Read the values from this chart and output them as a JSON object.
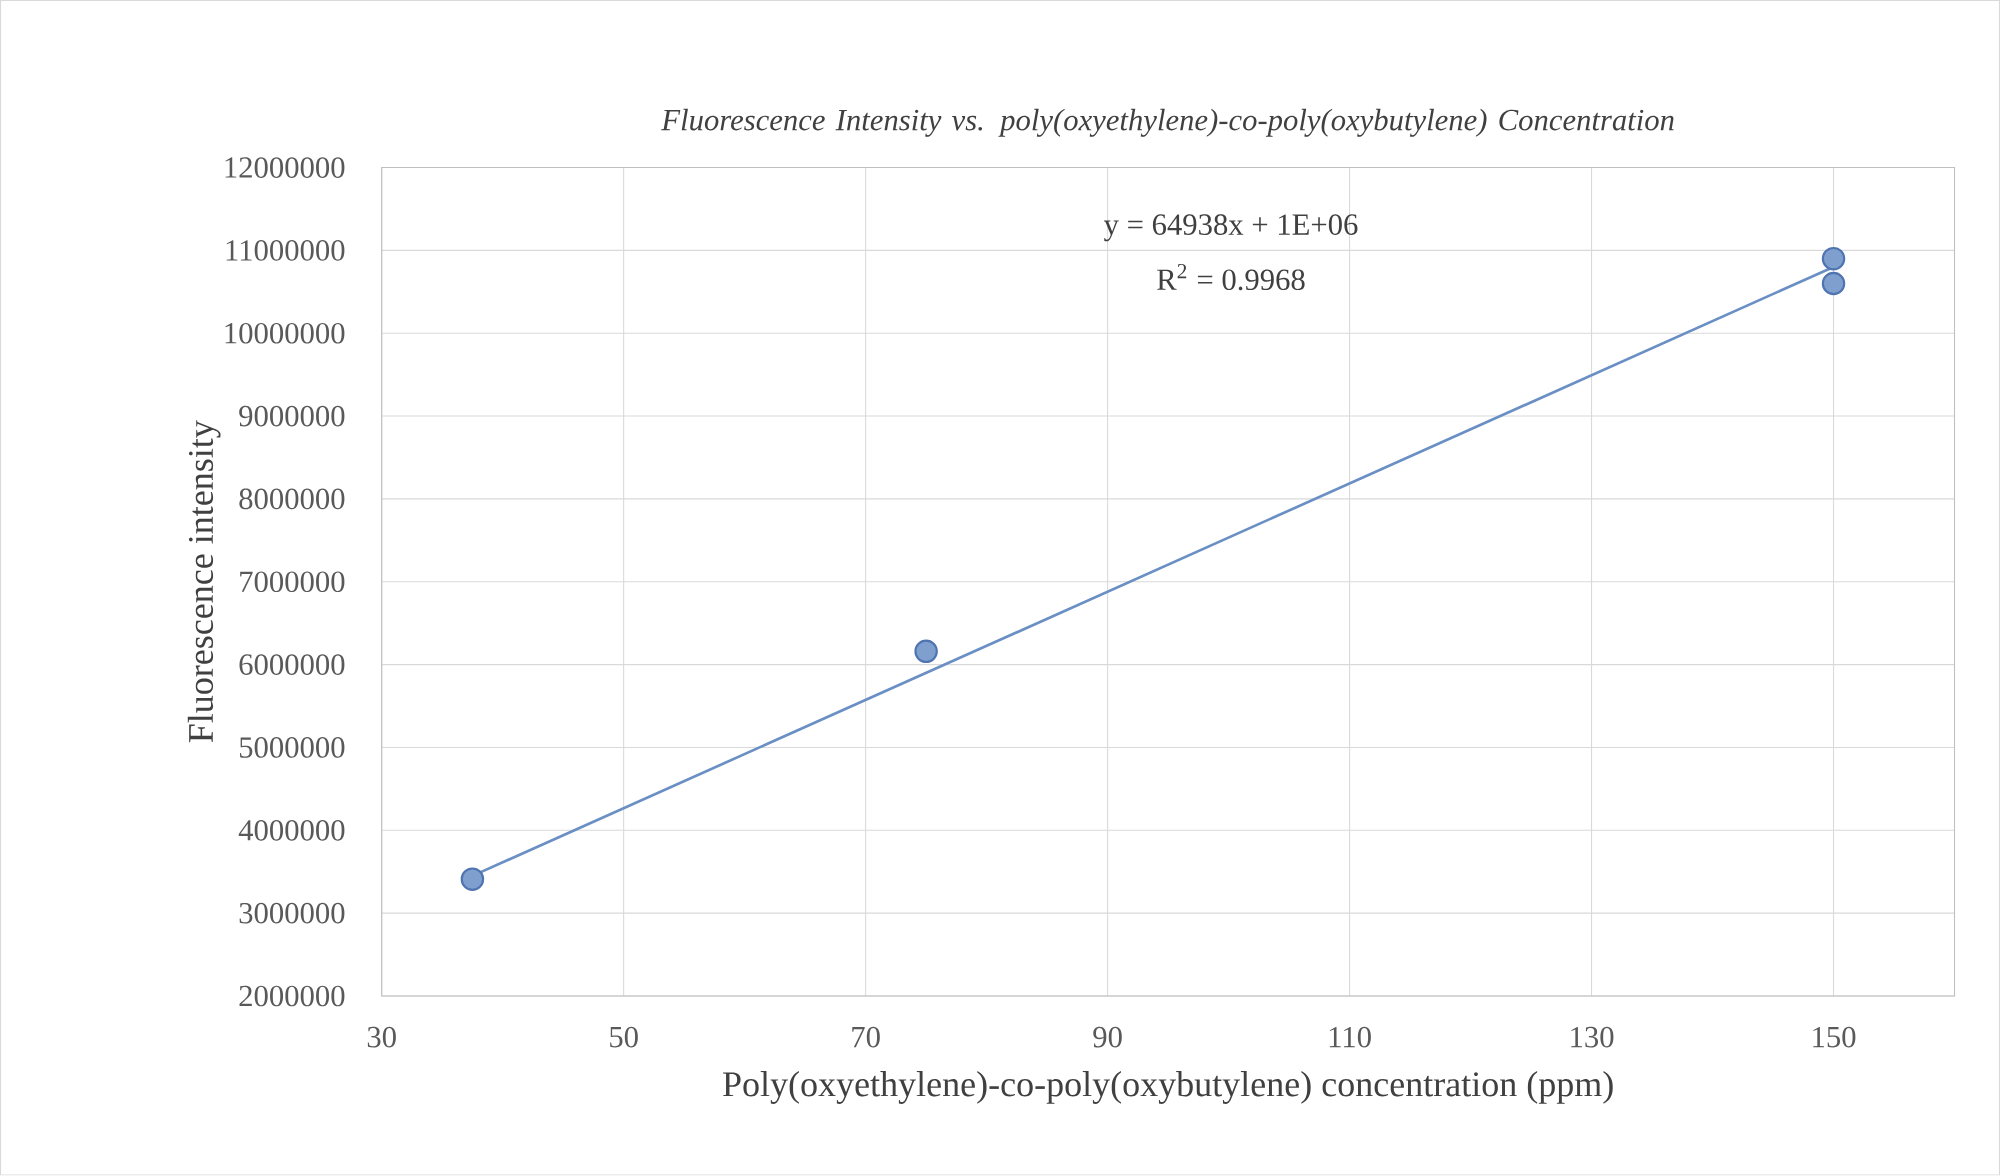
{
  "chart_data": {
    "type": "scatter",
    "title": "Fluorescence  Intensity vs. poly(oxyethylene)-co-poly(oxybutylene) Concentration",
    "xlabel": "Poly(oxyethylene)-co-poly(oxybutylene) concentration (ppm)",
    "ylabel": "Fluorescence intensity",
    "xlim": [
      30,
      160
    ],
    "xticks": [
      30,
      50,
      70,
      90,
      110,
      130,
      150
    ],
    "ylim": [
      2000000,
      12000000
    ],
    "yticks": [
      2000000,
      3000000,
      4000000,
      5000000,
      6000000,
      7000000,
      8000000,
      9000000,
      10000000,
      11000000,
      12000000
    ],
    "grid": true,
    "series": [
      {
        "color": "#7f9fcf",
        "marker": "circle",
        "x": [
          37.5,
          75,
          150,
          150
        ],
        "values": [
          3410000,
          6160000,
          10900000,
          10600000
        ]
      },
      {
        "type": "line",
        "color": "#6a8fc4",
        "marker": "none",
        "line_style": "solid",
        "x": [
          37.5,
          150
        ],
        "values": [
          3450000,
          10800000
        ]
      }
    ],
    "annotations": [
      "y = 64938x  + 1E+06",
      "R$^{2}$ = 0.9968"
    ]
  }
}
